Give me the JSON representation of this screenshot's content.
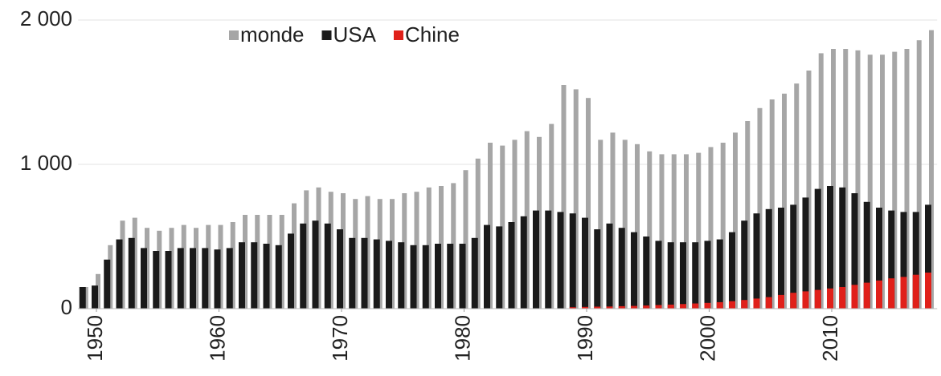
{
  "chart_data": {
    "type": "bar",
    "x": [
      1949,
      1950,
      1951,
      1952,
      1953,
      1954,
      1955,
      1956,
      1957,
      1958,
      1959,
      1960,
      1961,
      1962,
      1963,
      1964,
      1965,
      1966,
      1967,
      1968,
      1969,
      1970,
      1971,
      1972,
      1973,
      1974,
      1975,
      1976,
      1977,
      1978,
      1979,
      1980,
      1981,
      1982,
      1983,
      1984,
      1985,
      1986,
      1987,
      1988,
      1989,
      1990,
      1991,
      1992,
      1993,
      1994,
      1995,
      1996,
      1997,
      1998,
      1999,
      2000,
      2001,
      2002,
      2003,
      2004,
      2005,
      2006,
      2007,
      2008,
      2009,
      2010,
      2011,
      2012,
      2013,
      2014,
      2015,
      2016,
      2017,
      2018
    ],
    "series": [
      {
        "name": "monde",
        "color": "#a6a6a6",
        "values": [
          150,
          240,
          440,
          610,
          630,
          560,
          540,
          560,
          580,
          560,
          580,
          580,
          600,
          650,
          650,
          650,
          650,
          730,
          820,
          840,
          810,
          800,
          760,
          780,
          760,
          760,
          800,
          810,
          840,
          850,
          870,
          960,
          1040,
          1150,
          1130,
          1170,
          1230,
          1190,
          1280,
          1550,
          1520,
          1460,
          1170,
          1220,
          1170,
          1140,
          1090,
          1070,
          1070,
          1070,
          1080,
          1120,
          1150,
          1220,
          1300,
          1390,
          1450,
          1490,
          1560,
          1650,
          1770,
          1800,
          1800,
          1790,
          1760,
          1760,
          1780,
          1800,
          1860,
          1930
        ]
      },
      {
        "name": "USA",
        "color": "#1a1a1a",
        "values": [
          150,
          160,
          340,
          480,
          490,
          420,
          400,
          400,
          420,
          420,
          420,
          410,
          420,
          460,
          460,
          450,
          440,
          520,
          590,
          610,
          590,
          550,
          490,
          490,
          480,
          470,
          460,
          440,
          440,
          450,
          450,
          450,
          490,
          580,
          570,
          600,
          640,
          680,
          680,
          670,
          660,
          630,
          550,
          590,
          560,
          530,
          500,
          470,
          460,
          460,
          460,
          470,
          480,
          530,
          610,
          660,
          690,
          700,
          720,
          770,
          830,
          850,
          840,
          800,
          740,
          700,
          680,
          670,
          670,
          720
        ]
      },
      {
        "name": "Chine",
        "color": "#e0201a",
        "values": [
          null,
          null,
          null,
          null,
          null,
          null,
          null,
          null,
          null,
          null,
          null,
          null,
          null,
          null,
          null,
          null,
          null,
          null,
          null,
          null,
          null,
          null,
          null,
          null,
          null,
          null,
          null,
          null,
          null,
          null,
          null,
          null,
          null,
          null,
          null,
          null,
          null,
          null,
          null,
          null,
          10,
          12,
          14,
          15,
          17,
          19,
          22,
          25,
          28,
          32,
          36,
          40,
          45,
          52,
          60,
          70,
          80,
          95,
          110,
          120,
          130,
          140,
          150,
          165,
          180,
          195,
          210,
          220,
          235,
          250
        ]
      }
    ],
    "xlim": [
      1948.5,
      2018.6
    ],
    "xticks": [
      1950,
      1960,
      1970,
      1980,
      1990,
      2000,
      2010
    ],
    "ylim": [
      0,
      2000
    ],
    "yticks": [
      0,
      {
        "value": 1000,
        "label": "1 000"
      },
      {
        "value": 2000,
        "label": "2 000"
      }
    ],
    "grid": true,
    "legend": "top"
  }
}
